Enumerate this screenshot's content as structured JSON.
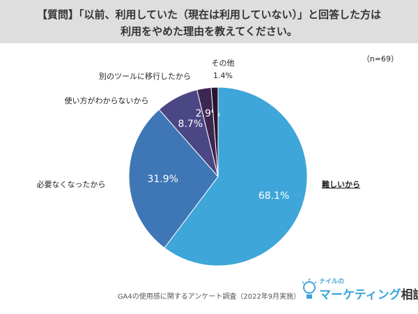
{
  "question": {
    "line1": "【質問】「以前、利用していた（現在は利用していない）」と回答した方は",
    "line2": "利用をやめた理由を教えてください。"
  },
  "sample_size": "（n=69）",
  "source": "GA4の使用感に関するアンケート調査（2022年9月実施）",
  "logo": {
    "small": "ナイルの",
    "main": "マーケティング",
    "sub": "相談室"
  },
  "colors": {
    "slice_0": "#3ea6d8",
    "slice_1": "#3f76b6",
    "slice_2": "#4b4784",
    "slice_3": "#3c2751",
    "slice_4": "#2a1530"
  },
  "chart_data": {
    "type": "pie",
    "start": "12 o'clock",
    "direction": "clockwise",
    "slices": [
      {
        "label": "難しいから",
        "value": 68.1,
        "value_label": "68.1%"
      },
      {
        "label": "必要なくなったから",
        "value": 31.9,
        "value_label": "31.9%"
      },
      {
        "label": "使い方がわからないから",
        "value": 8.7,
        "value_label": "8.7%"
      },
      {
        "label": "別のツールに移行したから",
        "value": 2.9,
        "value_label": "2.9%"
      },
      {
        "label": "その他",
        "value": 1.4,
        "value_label": "1.4%"
      }
    ]
  }
}
